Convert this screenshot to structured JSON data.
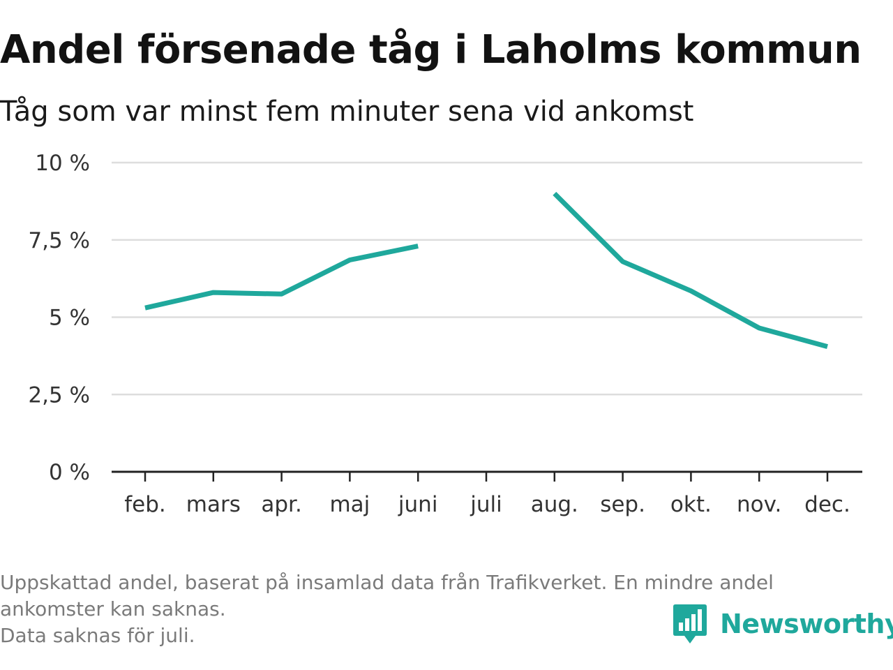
{
  "header": {
    "title": "Andel försenade tåg i Laholms kommun",
    "subtitle": "Tåg som var minst fem minuter sena vid ankomst"
  },
  "chart_data": {
    "type": "line",
    "categories": [
      "feb.",
      "mars",
      "apr.",
      "maj",
      "juni",
      "juli",
      "aug.",
      "sep.",
      "okt.",
      "nov.",
      "dec."
    ],
    "series": [
      {
        "values": [
          5.3,
          5.8,
          5.75,
          6.85,
          7.3,
          null,
          9.0,
          6.8,
          5.85,
          4.65,
          4.05
        ]
      }
    ],
    "ylim": [
      0,
      10
    ],
    "yticks": [
      0,
      2.5,
      5,
      7.5,
      10
    ],
    "ytick_labels": [
      "0 %",
      "2,5 %",
      "5 %",
      "7,5 %",
      "10 %"
    ],
    "grid": true,
    "line_color": "#1fa89c",
    "grid_color": "#dddddd",
    "axis_color": "#222222"
  },
  "footer": {
    "note_lines": [
      "Uppskattad andel, baserat på insamlad data från Trafikverket. En mindre andel",
      "ankomster kan saknas.",
      "Data saknas för juli."
    ],
    "brand": {
      "name": "Newsworthy",
      "icon": "bar-chart-speech-bubble-icon",
      "color": "#1fa89c"
    }
  }
}
